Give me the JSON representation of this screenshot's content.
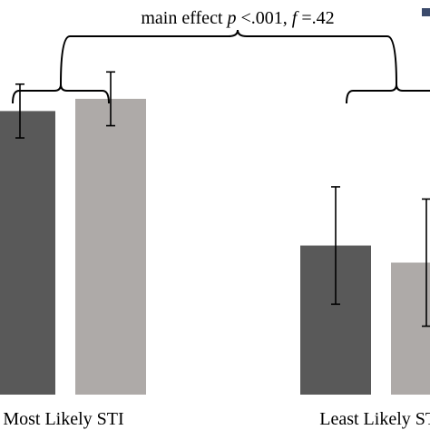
{
  "chart_data": {
    "type": "bar",
    "categories": [
      "Most Likely STI",
      "Least Likely STI"
    ],
    "series": [
      {
        "values": [
          4.6,
          1.85
        ],
        "errors": [
          0.55,
          1.2
        ],
        "color": "#595959"
      },
      {
        "values": [
          4.85,
          1.5
        ],
        "errors": [
          0.55,
          1.3
        ],
        "color": "#aeaaa8"
      }
    ],
    "annotation": {
      "prefix": "main effect ",
      "p_symbol": "p",
      "p_value": " <.001, ",
      "f_symbol": "f",
      "f_value": " =.42"
    },
    "ylim": [
      -1.2,
      6.5
    ],
    "grid": false,
    "legend": "top-right (cropped)",
    "legend_swatch_color": "#3b4a6b"
  }
}
